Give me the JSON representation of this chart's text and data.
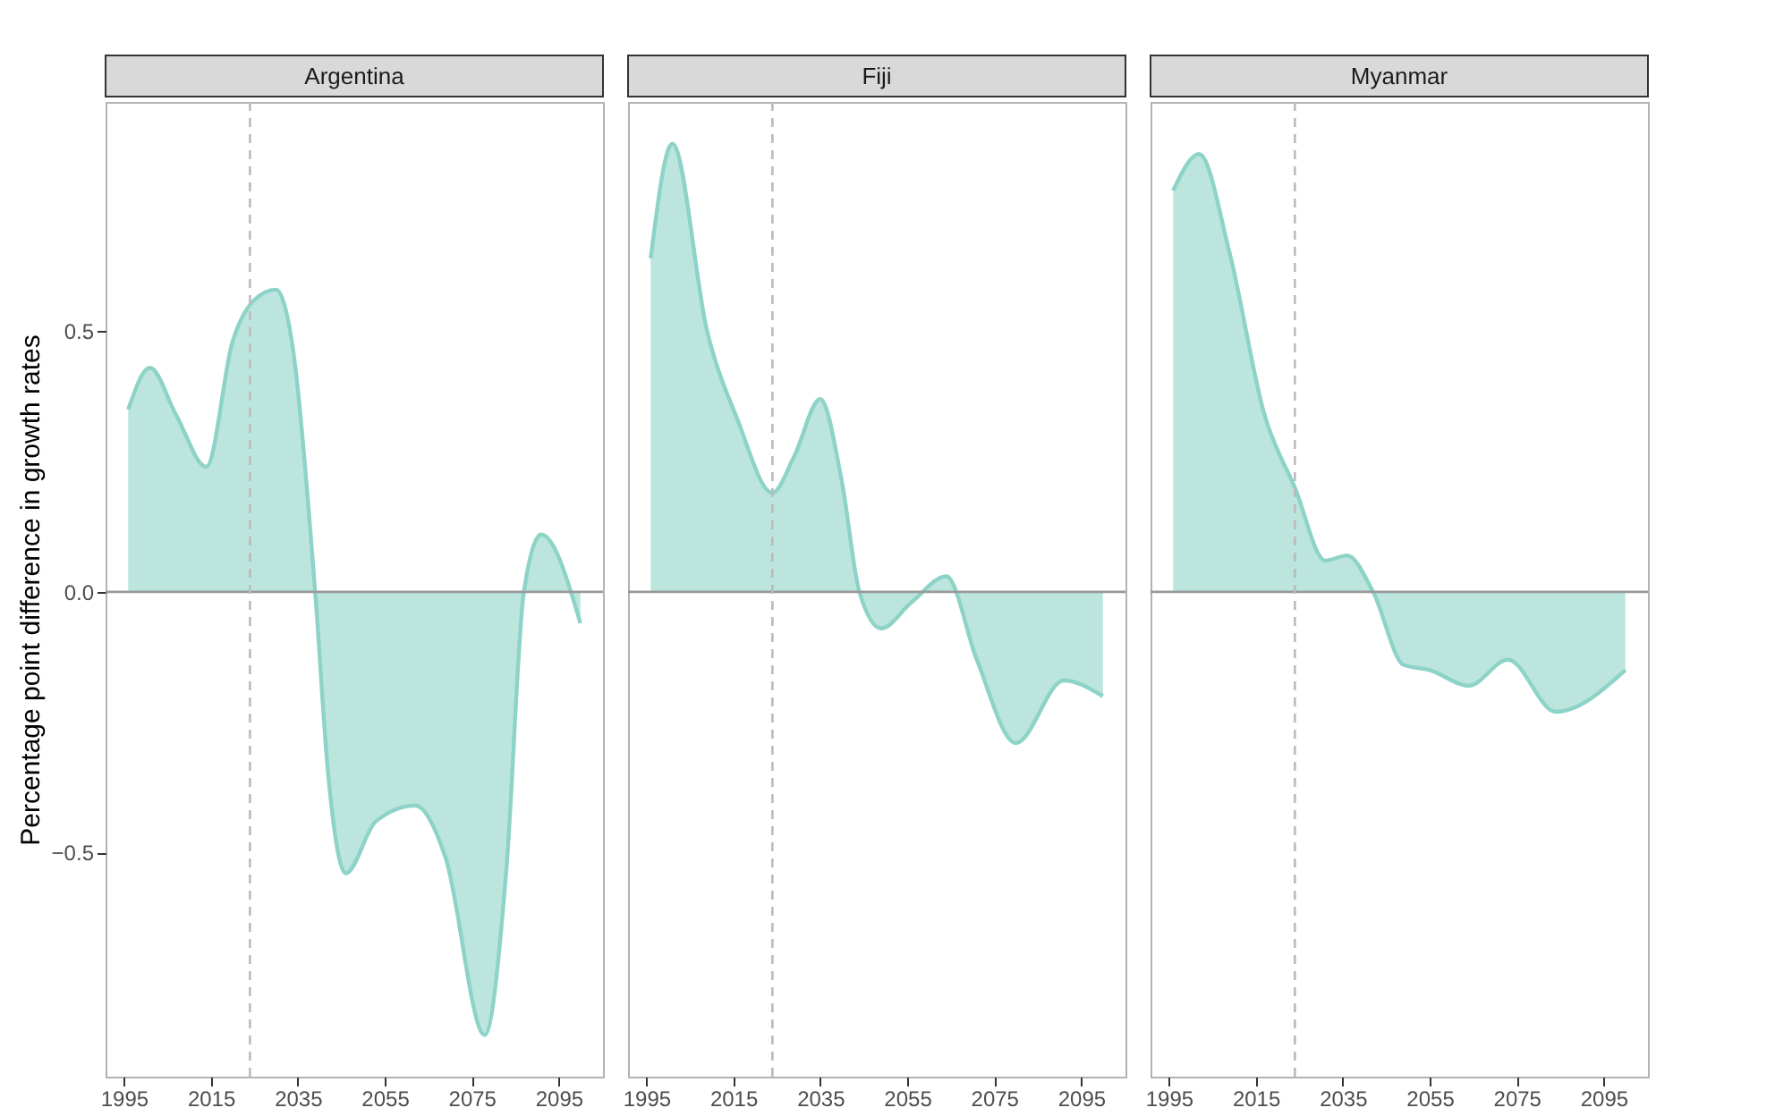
{
  "chart_data": [
    {
      "type": "area",
      "title": "Argentina",
      "ylabel": "Percentage point difference in growth rates",
      "x": [
        1996,
        2001,
        2007,
        2014,
        2020,
        2025,
        2030,
        2034,
        2039,
        2042,
        2046,
        2053,
        2062,
        2069,
        2078,
        2083,
        2087,
        2091,
        2100
      ],
      "series": [
        {
          "color": "#8dd3c7",
          "values": [
            0.35,
            0.43,
            0.34,
            0.24,
            0.48,
            0.56,
            0.58,
            0.46,
            0,
            -0.35,
            -0.54,
            -0.44,
            -0.41,
            -0.51,
            -0.85,
            -0.53,
            0,
            0.11,
            -0.06
          ]
        }
      ],
      "xlim": [
        1990.8,
        2105.2
      ],
      "ylim": [
        -0.93,
        0.94
      ],
      "xticks": [
        1995,
        2015,
        2035,
        2055,
        2075,
        2095
      ],
      "yticks": [
        -0.5,
        {
          "value": 0,
          "label": "0.0"
        },
        0.5
      ],
      "grid": false,
      "ref_lines": [
        {
          "axis": "y",
          "value": 0,
          "color": "#999999",
          "line_style": "solid"
        },
        {
          "axis": "x",
          "value": 2024,
          "color": "#bbbbbb",
          "line_style": "dashed"
        }
      ]
    },
    {
      "type": "area",
      "title": "Fiji",
      "x": [
        1996,
        2001,
        2009,
        2016,
        2024,
        2029,
        2035,
        2040,
        2044,
        2049,
        2056,
        2064,
        2071,
        2080,
        2091,
        2100
      ],
      "series": [
        {
          "color": "#8dd3c7",
          "values": [
            0.64,
            0.86,
            0.5,
            0.33,
            0.19,
            0.26,
            0.37,
            0.21,
            0,
            -0.07,
            -0.02,
            0.03,
            -0.13,
            -0.29,
            -0.17,
            -0.2
          ]
        }
      ],
      "xlim": [
        1990.8,
        2105.2
      ],
      "ylim": [
        -0.93,
        0.94
      ],
      "xticks": [
        1995,
        2015,
        2035,
        2055,
        2075,
        2095
      ],
      "grid": false,
      "tick_labels": "x",
      "ref_lines": [
        {
          "axis": "y",
          "value": 0,
          "color": "#999999",
          "line_style": "solid"
        },
        {
          "axis": "x",
          "value": 2024,
          "color": "#bbbbbb",
          "line_style": "dashed"
        }
      ]
    },
    {
      "type": "area",
      "title": "Myanmar",
      "x": [
        1996,
        2002,
        2009,
        2017,
        2024,
        2031,
        2036,
        2042,
        2049,
        2055,
        2064,
        2073,
        2084,
        2100
      ],
      "series": [
        {
          "color": "#8dd3c7",
          "values": [
            0.77,
            0.84,
            0.65,
            0.34,
            0.2,
            0.06,
            0.07,
            0,
            -0.14,
            -0.15,
            -0.18,
            -0.13,
            -0.23,
            -0.15
          ]
        }
      ],
      "xlim": [
        1990.8,
        2105.2
      ],
      "ylim": [
        -0.93,
        0.94
      ],
      "xticks": [
        1995,
        2015,
        2035,
        2055,
        2075,
        2095
      ],
      "grid": false,
      "tick_labels": "x",
      "ref_lines": [
        {
          "axis": "y",
          "value": 0,
          "color": "#999999",
          "line_style": "solid"
        },
        {
          "axis": "x",
          "value": 2024,
          "color": "#bbbbbb",
          "line_style": "dashed"
        }
      ]
    }
  ]
}
